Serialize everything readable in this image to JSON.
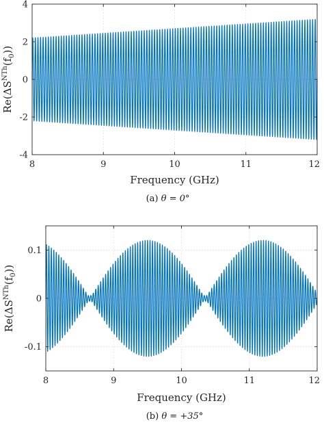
{
  "chart_data": [
    {
      "type": "line",
      "subfigure": "(a)",
      "caption_prefix": "(a) ",
      "caption_math": "θ = 0°",
      "xlabel": "Frequency (GHz)",
      "ylabel_prefix": "Re(ΔS",
      "ylabel_sup": "NTh",
      "ylabel_suffix": "(f",
      "ylabel_sub": "0",
      "ylabel_close": "))",
      "xlim": [
        8,
        12
      ],
      "ylim": [
        -4,
        4
      ],
      "xticks": [
        8,
        9,
        10,
        11,
        12
      ],
      "yticks": [
        -4,
        -2,
        0,
        2,
        4
      ],
      "xtick_labels": [
        "8",
        "9",
        "10",
        "11",
        "12"
      ],
      "ytick_labels": [
        "-4",
        "-2",
        "0",
        "2",
        "4"
      ],
      "grid": true,
      "series": [
        {
          "color": "#0072BD",
          "shape": "dense oscillation with linear envelope",
          "envelope_upper": {
            "x": [
              8,
              12
            ],
            "y": [
              2.2,
              3.2
            ]
          },
          "envelope_lower": {
            "x": [
              8,
              12
            ],
            "y": [
              -2.2,
              -3.2
            ]
          },
          "oscillation_cycles": 110
        }
      ]
    },
    {
      "type": "line",
      "subfigure": "(b)",
      "caption_prefix": "(b) ",
      "caption_math": "θ = +35°",
      "xlabel": "Frequency (GHz)",
      "ylabel_prefix": "Re(ΔS",
      "ylabel_sup": "NTh",
      "ylabel_suffix": "(f",
      "ylabel_sub": "0",
      "ylabel_close": "))",
      "xlim": [
        8,
        12
      ],
      "ylim": [
        -0.15,
        0.15
      ],
      "xticks": [
        8,
        9,
        10,
        11,
        12
      ],
      "yticks": [
        -0.1,
        0,
        0.1
      ],
      "xtick_labels": [
        "8",
        "9",
        "10",
        "11",
        "12"
      ],
      "ytick_labels": [
        "-0.1",
        "0",
        "0.1"
      ],
      "grid": true,
      "series": [
        {
          "color": "#0072BD",
          "shape": "dense oscillation with beating envelope",
          "envelope_peak": 0.12,
          "envelope_peaks_x": [
            9.5,
            11.2
          ],
          "envelope_nulls_x": [
            8.65,
            10.35
          ],
          "oscillation_cycles": 110
        }
      ]
    }
  ]
}
